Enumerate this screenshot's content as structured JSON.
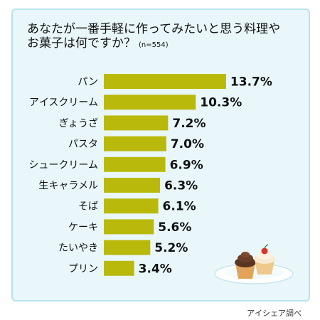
{
  "title_line1": "あなたが一番手軽に作ってみたいと思う料理や",
  "title_line2": "お菓子は何ですか？",
  "sample_note": "(n=554)",
  "source": "アイシェア調べ",
  "colors": {
    "bar": "#b9b90c",
    "panel": "#e9f7fb",
    "panel_border": "#b7e3ee"
  },
  "illustration": "cupcakes-on-plate-icon",
  "chart_data": {
    "type": "bar",
    "orientation": "horizontal",
    "title": "あなたが一番手軽に作ってみたいと思う料理やお菓子は何ですか？",
    "categories": [
      "パン",
      "アイスクリーム",
      "ぎょうざ",
      "パスタ",
      "シュークリーム",
      "生キャラメル",
      "そば",
      "ケーキ",
      "たいやき",
      "プリン"
    ],
    "values": [
      13.7,
      10.3,
      7.2,
      7.0,
      6.9,
      6.3,
      6.1,
      5.6,
      5.2,
      3.4
    ],
    "value_labels": [
      "13.7%",
      "10.3%",
      "7.2%",
      "7.0%",
      "6.9%",
      "6.3%",
      "6.1%",
      "5.6%",
      "5.2%",
      "3.4%"
    ],
    "unit": "%",
    "xlabel": "",
    "ylabel": "",
    "grid": false,
    "legend": "none"
  }
}
